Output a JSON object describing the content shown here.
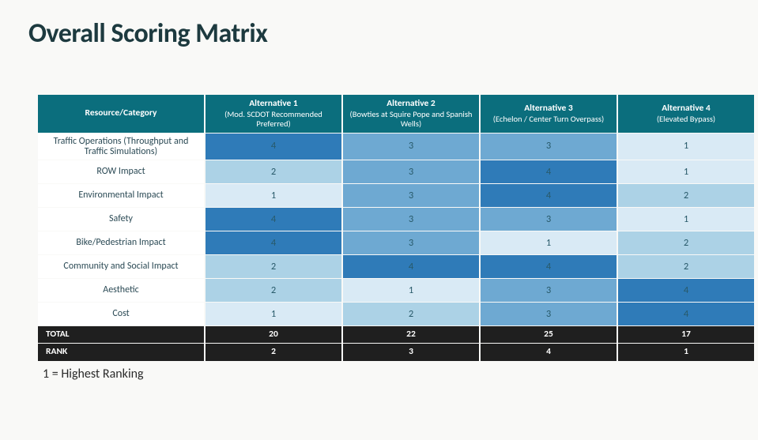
{
  "title": "Overall Scoring Matrix",
  "footnote": "1 = Highest Ranking",
  "colors": {
    "header_bg": "#0b6e7d",
    "header_text": "#ffffff",
    "rowlabel_bg": "#ffffff",
    "rowlabel_text": "#2b4a55",
    "totals_bg": "#1f1f1f",
    "totals_text": "#ffffff",
    "heat_1": "#d9eaf5",
    "heat_2": "#acd2e6",
    "heat_3": "#6ea9d2",
    "heat_4": "#2f7bb8",
    "score_text": "#285a6a"
  },
  "columns": [
    {
      "title": "Resource/Category",
      "sub": ""
    },
    {
      "title": "Alternative 1",
      "sub": "(Mod. SCDOT Recommended Preferred)"
    },
    {
      "title": "Alternative 2",
      "sub": "(Bowties at Squire Pope and Spanish Wells)"
    },
    {
      "title": "Alternative 3",
      "sub": "(Echelon / Center Turn Overpass)"
    },
    {
      "title": "Alternative 4",
      "sub": "(Elevated Bypass)"
    }
  ],
  "rows": [
    {
      "label": "Traffic Operations (Throughput and Traffic Simulations)",
      "scores": [
        4,
        3,
        3,
        1
      ]
    },
    {
      "label": "ROW Impact",
      "scores": [
        2,
        3,
        4,
        1
      ]
    },
    {
      "label": "Environmental Impact",
      "scores": [
        1,
        3,
        4,
        2
      ]
    },
    {
      "label": "Safety",
      "scores": [
        4,
        3,
        3,
        1
      ]
    },
    {
      "label": "Bike/Pedestrian Impact",
      "scores": [
        4,
        3,
        1,
        2
      ]
    },
    {
      "label": "Community and Social Impact",
      "scores": [
        2,
        4,
        4,
        2
      ]
    },
    {
      "label": "Aesthetic",
      "scores": [
        2,
        1,
        3,
        4
      ]
    },
    {
      "label": "Cost",
      "scores": [
        1,
        2,
        3,
        4
      ]
    }
  ],
  "totals": {
    "label": "TOTAL",
    "values": [
      20,
      22,
      25,
      17
    ]
  },
  "ranks": {
    "label": "RANK",
    "values": [
      2,
      3,
      4,
      1
    ]
  }
}
